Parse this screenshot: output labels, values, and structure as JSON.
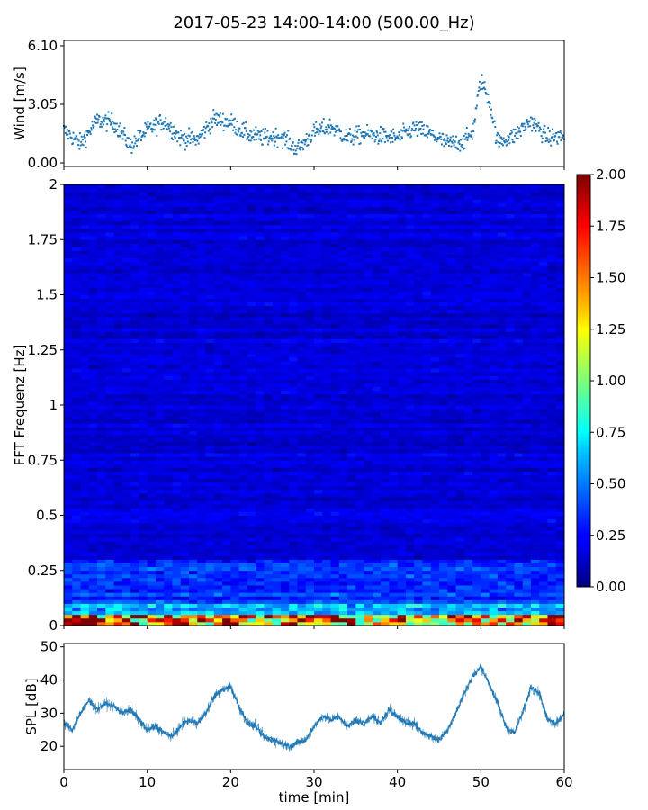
{
  "title": "2017-05-23 14:00-14:00 (500.00_Hz)",
  "chart_data": [
    {
      "type": "scatter",
      "name": "wind",
      "ylabel": "Wind [m/s]",
      "yticks": [
        "0.00",
        "3.05",
        "6.10"
      ],
      "ylim": [
        0,
        6.1
      ],
      "xlim": [
        0,
        60
      ],
      "color": "#1f77b4",
      "baseline_profile": {
        "x": [
          0,
          2,
          4,
          6,
          8,
          10,
          12,
          14,
          16,
          18,
          20,
          22,
          24,
          26,
          28,
          30,
          32,
          34,
          36,
          38,
          40,
          42,
          44,
          46,
          48,
          49,
          50,
          51,
          52,
          54,
          56,
          58,
          60
        ],
        "y": [
          1.7,
          1.0,
          2.2,
          2.1,
          0.9,
          1.7,
          2.2,
          1.3,
          1.2,
          2.3,
          2.1,
          1.5,
          1.3,
          1.4,
          0.7,
          1.6,
          1.9,
          1.3,
          1.5,
          1.4,
          1.3,
          1.8,
          1.5,
          1.0,
          1.1,
          1.6,
          4.3,
          3.3,
          1.1,
          1.4,
          2.2,
          1.3,
          1.4
        ]
      }
    },
    {
      "type": "heatmap",
      "name": "spectrogram",
      "ylabel": "FFT Frequenz [Hz]",
      "xlim": [
        0,
        60
      ],
      "ylim": [
        0,
        2
      ],
      "yticks": [
        "0",
        "0.25",
        "0.5",
        "0.75",
        "1",
        "1.25",
        "1.5",
        "1.75",
        "2"
      ],
      "colormap": "jet",
      "colorbar": {
        "range": [
          0,
          2
        ],
        "ticks": [
          "0.00",
          "0.25",
          "0.50",
          "0.75",
          "1.00",
          "1.25",
          "1.50",
          "1.75",
          "2.00"
        ]
      },
      "typical_values": {
        "below_0.05_Hz": 1.2,
        "0.05_to_0.1_Hz": 0.6,
        "0.1_to_0.3_Hz": 0.35,
        "above_0.3_Hz": 0.18
      }
    },
    {
      "type": "line",
      "name": "spl",
      "ylabel": "SPL [dB]",
      "xlabel": "time [min]",
      "xlim": [
        0,
        60
      ],
      "ylim": [
        13,
        51
      ],
      "yticks": [
        "20",
        "30",
        "40",
        "50"
      ],
      "xticks": [
        "0",
        "10",
        "20",
        "30",
        "40",
        "50",
        "60"
      ],
      "color": "#1f77b4",
      "x": [
        0,
        1,
        2,
        3,
        4,
        5,
        6,
        7,
        8,
        9,
        10,
        11,
        12,
        13,
        14,
        15,
        16,
        17,
        18,
        19,
        20,
        21,
        22,
        23,
        24,
        25,
        26,
        27,
        28,
        29,
        30,
        31,
        32,
        33,
        34,
        35,
        36,
        37,
        38,
        39,
        40,
        41,
        42,
        43,
        44,
        45,
        46,
        47,
        48,
        49,
        50,
        51,
        52,
        53,
        54,
        55,
        56,
        57,
        58,
        59,
        60
      ],
      "y": [
        27,
        25,
        30,
        34,
        31,
        33,
        32,
        30,
        31,
        28,
        25,
        26,
        24,
        23,
        26,
        28,
        27,
        30,
        35,
        37,
        38,
        32,
        27,
        26,
        23,
        22,
        21,
        20,
        21,
        22,
        26,
        29,
        28,
        29,
        26,
        28,
        27,
        29,
        27,
        31,
        29,
        27,
        27,
        24,
        23,
        22,
        25,
        30,
        36,
        41,
        44,
        39,
        33,
        26,
        24,
        30,
        38,
        36,
        28,
        27,
        30
      ]
    }
  ]
}
